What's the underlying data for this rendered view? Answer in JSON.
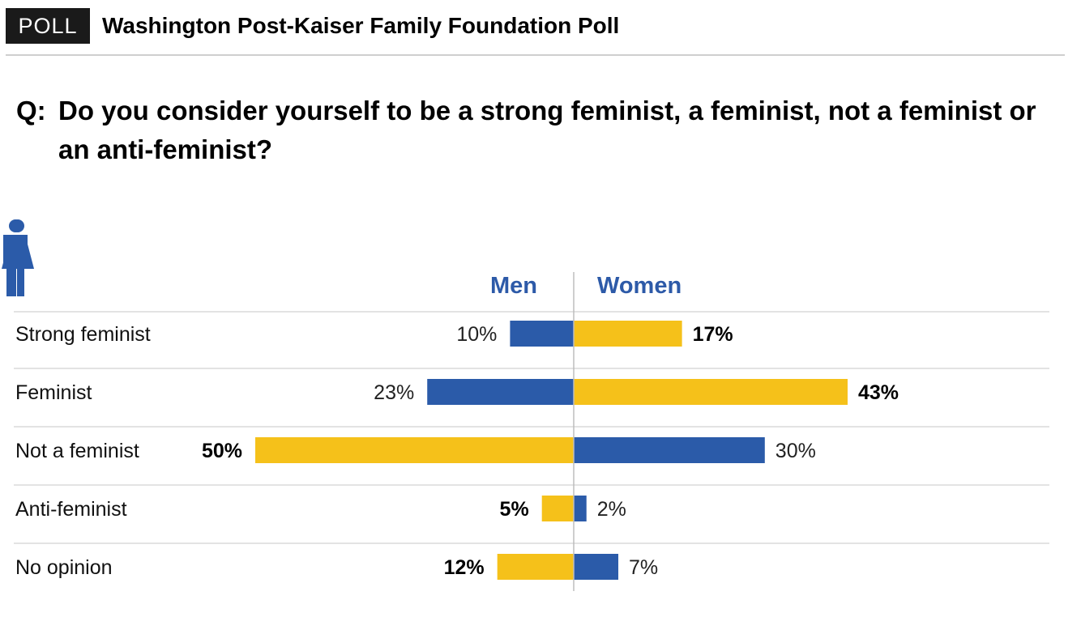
{
  "header": {
    "badge": "POLL",
    "title": "Washington Post-Kaiser Family Foundation Poll"
  },
  "question": {
    "label": "Q:",
    "text": "Do you consider yourself to be a strong feminist, a feminist, not a feminist or an anti-feminist?"
  },
  "icons": {
    "men": "man-icon",
    "women": "woman-icon"
  },
  "colors": {
    "blue": "#2b5ba9",
    "yellow": "#f5c11a",
    "legend_text": "#2d5aa8",
    "gridline": "#e3e3e3",
    "axis": "#bdbdbd"
  },
  "chart_data": {
    "type": "bar",
    "orientation": "horizontal-diverging",
    "categories": [
      "Strong feminist",
      "Feminist",
      "Not a feminist",
      "Anti-feminist",
      "No opinion"
    ],
    "series": [
      {
        "name": "Men",
        "values": [
          10,
          23,
          50,
          5,
          12
        ],
        "labels": [
          "10%",
          "23%",
          "50%",
          "5%",
          "12%"
        ],
        "colors": [
          "blue",
          "blue",
          "yellow",
          "yellow",
          "yellow"
        ],
        "bold": [
          false,
          false,
          true,
          true,
          true
        ]
      },
      {
        "name": "Women",
        "values": [
          17,
          43,
          30,
          2,
          7
        ],
        "labels": [
          "17%",
          "43%",
          "30%",
          "2%",
          "7%"
        ],
        "colors": [
          "yellow",
          "yellow",
          "blue",
          "blue",
          "blue"
        ],
        "bold": [
          true,
          true,
          false,
          false,
          false
        ]
      }
    ],
    "grid": true
  }
}
